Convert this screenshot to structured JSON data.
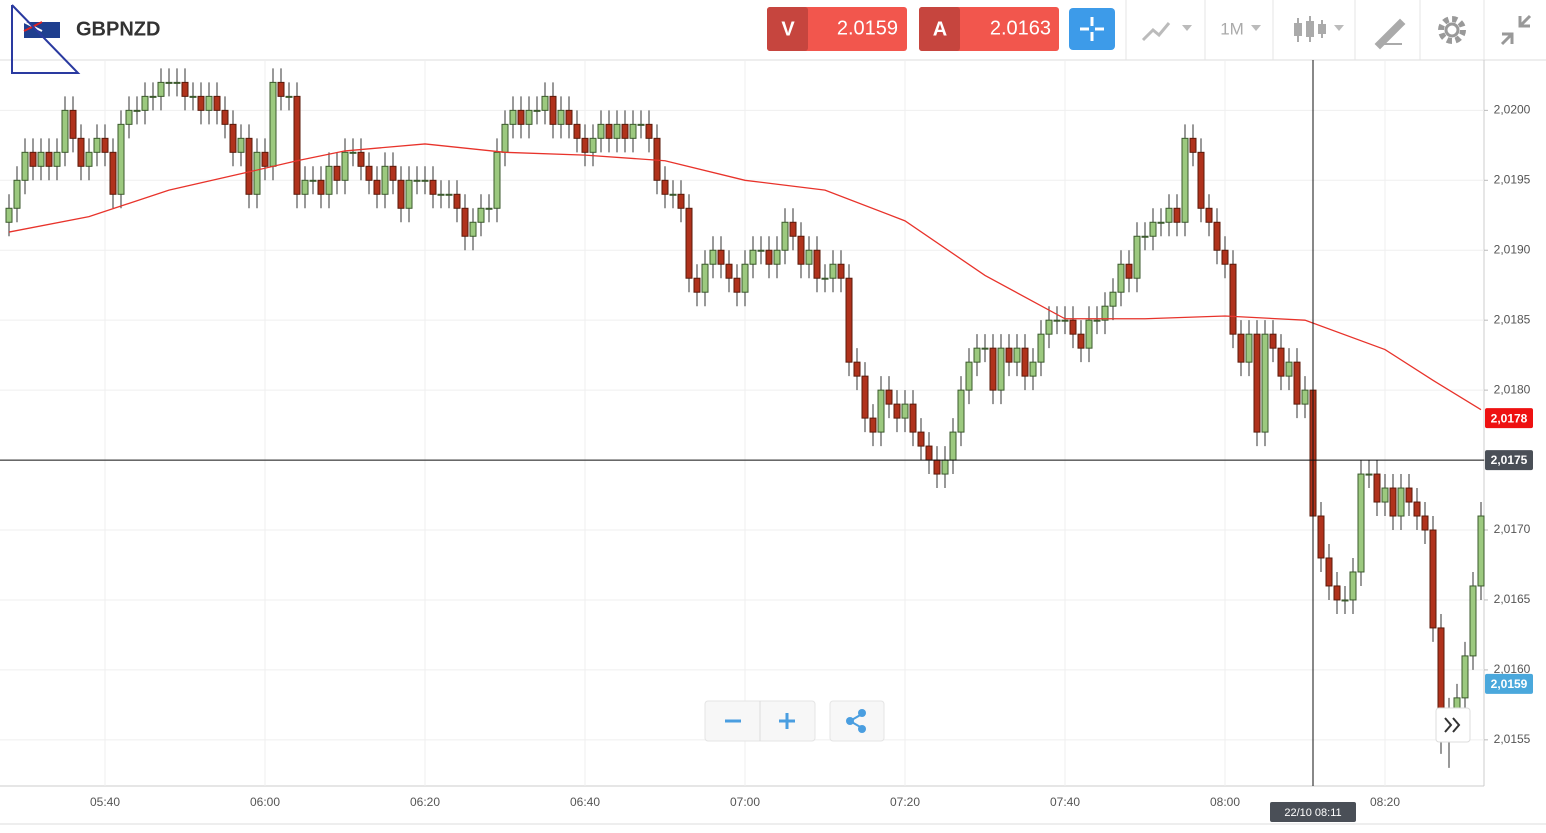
{
  "header": {
    "symbol": "GBPNZD",
    "sell_label": "V",
    "sell_price": "2.0159",
    "buy_label": "A",
    "buy_price": "2.0163",
    "timeframe": "1M"
  },
  "chart_data": {
    "type": "candlestick",
    "categories": [
      "05:28",
      "05:29",
      "05:30",
      "05:31",
      "05:32",
      "05:33",
      "05:34",
      "05:35",
      "05:36",
      "05:37",
      "05:38",
      "05:39",
      "05:40",
      "05:41",
      "05:42",
      "05:43",
      "05:44",
      "05:45",
      "05:46",
      "05:47",
      "05:48",
      "05:49",
      "05:50",
      "05:51",
      "05:52",
      "05:53",
      "05:54",
      "05:55",
      "05:56",
      "05:57",
      "05:58",
      "05:59",
      "06:00",
      "06:01",
      "06:02",
      "06:03",
      "06:04",
      "06:05",
      "06:06",
      "06:07",
      "06:08",
      "06:09",
      "06:10",
      "06:11",
      "06:12",
      "06:13",
      "06:14",
      "06:15",
      "06:16",
      "06:17",
      "06:18",
      "06:19",
      "06:20",
      "06:21",
      "06:22",
      "06:23",
      "06:24",
      "06:25",
      "06:26",
      "06:27",
      "06:28",
      "06:29",
      "06:30",
      "06:31",
      "06:32",
      "06:33",
      "06:34",
      "06:35",
      "06:36",
      "06:37",
      "06:38",
      "06:39",
      "06:40",
      "06:41",
      "06:42",
      "06:43",
      "06:44",
      "06:45",
      "06:46",
      "06:47",
      "06:48",
      "06:49",
      "06:50",
      "06:51",
      "06:52",
      "06:53",
      "06:54",
      "06:55",
      "06:56",
      "06:57",
      "06:58",
      "06:59",
      "07:00",
      "07:01",
      "07:02",
      "07:03",
      "07:04",
      "07:05",
      "07:06",
      "07:07",
      "07:08",
      "07:09",
      "07:10",
      "07:11",
      "07:12",
      "07:13",
      "07:14",
      "07:15",
      "07:16",
      "07:17",
      "07:18",
      "07:19",
      "07:20",
      "07:21",
      "07:22",
      "07:23",
      "07:24",
      "07:25",
      "07:26",
      "07:27",
      "07:28",
      "07:29",
      "07:30",
      "07:31",
      "07:32",
      "07:33",
      "07:34",
      "07:35",
      "07:36",
      "07:37",
      "07:38",
      "07:39",
      "07:40",
      "07:41",
      "07:42",
      "07:43",
      "07:44",
      "07:45",
      "07:46",
      "07:47",
      "07:48",
      "07:49",
      "07:50",
      "07:51",
      "07:52",
      "07:53",
      "07:54",
      "07:55",
      "07:56",
      "07:57",
      "07:58",
      "07:59",
      "08:00",
      "08:01",
      "08:02",
      "08:03",
      "08:04",
      "08:05",
      "08:06",
      "08:07",
      "08:08",
      "08:09",
      "08:10",
      "08:11",
      "08:12",
      "08:13",
      "08:14",
      "08:15",
      "08:16",
      "08:17",
      "08:18",
      "08:19",
      "08:20",
      "08:21",
      "08:22",
      "08:23",
      "08:24",
      "08:25",
      "08:26",
      "08:27",
      "08:28",
      "08:29",
      "08:30",
      "08:31",
      "08:32"
    ],
    "ohlc": [
      [
        2.0192,
        2.0194,
        2.0191,
        2.0193
      ],
      [
        2.0193,
        2.0196,
        2.0192,
        2.0195
      ],
      [
        2.0195,
        2.0198,
        2.0194,
        2.0197
      ],
      [
        2.0197,
        2.0198,
        2.0195,
        2.0196
      ],
      [
        2.0196,
        2.0198,
        2.0195,
        2.0197
      ],
      [
        2.0197,
        2.0198,
        2.0195,
        2.0196
      ],
      [
        2.0196,
        2.0198,
        2.0195,
        2.0197
      ],
      [
        2.0197,
        2.0201,
        2.0196,
        2.02
      ],
      [
        2.02,
        2.0201,
        2.0197,
        2.0198
      ],
      [
        2.0198,
        2.0199,
        2.0195,
        2.0196
      ],
      [
        2.0196,
        2.0198,
        2.0195,
        2.0197
      ],
      [
        2.0197,
        2.0199,
        2.0196,
        2.0198
      ],
      [
        2.0198,
        2.0199,
        2.0196,
        2.0197
      ],
      [
        2.0197,
        2.0198,
        2.0193,
        2.0194
      ],
      [
        2.0194,
        2.02,
        2.0193,
        2.0199
      ],
      [
        2.0199,
        2.0201,
        2.0198,
        2.02
      ],
      [
        2.02,
        2.0201,
        2.0199,
        2.02
      ],
      [
        2.02,
        2.0202,
        2.0199,
        2.0201
      ],
      [
        2.0201,
        2.0202,
        2.02,
        2.0201
      ],
      [
        2.0201,
        2.0203,
        2.02,
        2.0202
      ],
      [
        2.0202,
        2.0203,
        2.0201,
        2.0202
      ],
      [
        2.0202,
        2.0203,
        2.0201,
        2.0202
      ],
      [
        2.0202,
        2.0203,
        2.02,
        2.0201
      ],
      [
        2.0201,
        2.0202,
        2.02,
        2.0201
      ],
      [
        2.0201,
        2.0202,
        2.0199,
        2.02
      ],
      [
        2.02,
        2.0202,
        2.0199,
        2.0201
      ],
      [
        2.0201,
        2.0202,
        2.0199,
        2.02
      ],
      [
        2.02,
        2.0201,
        2.0198,
        2.0199
      ],
      [
        2.0199,
        2.02,
        2.0196,
        2.0197
      ],
      [
        2.0197,
        2.0199,
        2.0196,
        2.0198
      ],
      [
        2.0198,
        2.0199,
        2.0193,
        2.0194
      ],
      [
        2.0194,
        2.0198,
        2.0193,
        2.0197
      ],
      [
        2.0197,
        2.0198,
        2.0195,
        2.0196
      ],
      [
        2.0196,
        2.0203,
        2.0195,
        2.0202
      ],
      [
        2.0202,
        2.0203,
        2.02,
        2.0201
      ],
      [
        2.0201,
        2.0202,
        2.02,
        2.0201
      ],
      [
        2.0201,
        2.0202,
        2.0193,
        2.0194
      ],
      [
        2.0194,
        2.0196,
        2.0193,
        2.0195
      ],
      [
        2.0195,
        2.0196,
        2.0194,
        2.0195
      ],
      [
        2.0195,
        2.0196,
        2.0193,
        2.0194
      ],
      [
        2.0194,
        2.0197,
        2.0193,
        2.0196
      ],
      [
        2.0196,
        2.0197,
        2.0194,
        2.0195
      ],
      [
        2.0195,
        2.0198,
        2.0194,
        2.0197
      ],
      [
        2.0197,
        2.0198,
        2.0196,
        2.0197
      ],
      [
        2.0197,
        2.0198,
        2.0195,
        2.0196
      ],
      [
        2.0196,
        2.0197,
        2.0194,
        2.0195
      ],
      [
        2.0195,
        2.0196,
        2.0193,
        2.0194
      ],
      [
        2.0194,
        2.0197,
        2.0193,
        2.0196
      ],
      [
        2.0196,
        2.0197,
        2.0194,
        2.0195
      ],
      [
        2.0195,
        2.0196,
        2.0192,
        2.0193
      ],
      [
        2.0193,
        2.0196,
        2.0192,
        2.0195
      ],
      [
        2.0195,
        2.0196,
        2.0194,
        2.0195
      ],
      [
        2.0195,
        2.0196,
        2.0194,
        2.0195
      ],
      [
        2.0195,
        2.0196,
        2.0193,
        2.0194
      ],
      [
        2.0194,
        2.0195,
        2.0193,
        2.0194
      ],
      [
        2.0194,
        2.0195,
        2.0193,
        2.0194
      ],
      [
        2.0194,
        2.0195,
        2.0192,
        2.0193
      ],
      [
        2.0193,
        2.0194,
        2.019,
        2.0191
      ],
      [
        2.0191,
        2.0193,
        2.019,
        2.0192
      ],
      [
        2.0192,
        2.0194,
        2.0191,
        2.0193
      ],
      [
        2.0193,
        2.0194,
        2.0192,
        2.0193
      ],
      [
        2.0193,
        2.0198,
        2.0192,
        2.0197
      ],
      [
        2.0197,
        2.02,
        2.0196,
        2.0199
      ],
      [
        2.0199,
        2.0201,
        2.0198,
        2.02
      ],
      [
        2.02,
        2.0201,
        2.0198,
        2.0199
      ],
      [
        2.0199,
        2.0201,
        2.0198,
        2.02
      ],
      [
        2.02,
        2.0201,
        2.0199,
        2.02
      ],
      [
        2.02,
        2.0202,
        2.0199,
        2.0201
      ],
      [
        2.0201,
        2.0202,
        2.0198,
        2.0199
      ],
      [
        2.0199,
        2.0201,
        2.0198,
        2.02
      ],
      [
        2.02,
        2.0201,
        2.0198,
        2.0199
      ],
      [
        2.0199,
        2.02,
        2.0197,
        2.0198
      ],
      [
        2.0198,
        2.0199,
        2.0196,
        2.0197
      ],
      [
        2.0197,
        2.0199,
        2.0196,
        2.0198
      ],
      [
        2.0198,
        2.02,
        2.0197,
        2.0199
      ],
      [
        2.0199,
        2.02,
        2.0197,
        2.0198
      ],
      [
        2.0198,
        2.02,
        2.0197,
        2.0199
      ],
      [
        2.0199,
        2.02,
        2.0197,
        2.0198
      ],
      [
        2.0198,
        2.02,
        2.0197,
        2.0199
      ],
      [
        2.0199,
        2.02,
        2.0198,
        2.0199
      ],
      [
        2.0199,
        2.02,
        2.0197,
        2.0198
      ],
      [
        2.0198,
        2.0199,
        2.0194,
        2.0195
      ],
      [
        2.0195,
        2.0196,
        2.0193,
        2.0194
      ],
      [
        2.0194,
        2.0195,
        2.0193,
        2.0194
      ],
      [
        2.0194,
        2.0195,
        2.0192,
        2.0193
      ],
      [
        2.0193,
        2.0194,
        2.0187,
        2.0188
      ],
      [
        2.0188,
        2.0189,
        2.0186,
        2.0187
      ],
      [
        2.0187,
        2.019,
        2.0186,
        2.0189
      ],
      [
        2.0189,
        2.0191,
        2.0188,
        2.019
      ],
      [
        2.019,
        2.0191,
        2.0188,
        2.0189
      ],
      [
        2.0189,
        2.019,
        2.0187,
        2.0188
      ],
      [
        2.0188,
        2.0189,
        2.0186,
        2.0187
      ],
      [
        2.0187,
        2.019,
        2.0186,
        2.0189
      ],
      [
        2.0189,
        2.0191,
        2.0188,
        2.019
      ],
      [
        2.019,
        2.0191,
        2.0189,
        2.019
      ],
      [
        2.019,
        2.0191,
        2.0188,
        2.0189
      ],
      [
        2.0189,
        2.0191,
        2.0188,
        2.019
      ],
      [
        2.019,
        2.0193,
        2.0189,
        2.0192
      ],
      [
        2.0192,
        2.0193,
        2.019,
        2.0191
      ],
      [
        2.0191,
        2.0192,
        2.0188,
        2.0189
      ],
      [
        2.0189,
        2.0191,
        2.0188,
        2.019
      ],
      [
        2.019,
        2.0191,
        2.0187,
        2.0188
      ],
      [
        2.0188,
        2.0189,
        2.0187,
        2.0188
      ],
      [
        2.0188,
        2.019,
        2.0187,
        2.0189
      ],
      [
        2.0189,
        2.019,
        2.0187,
        2.0188
      ],
      [
        2.0188,
        2.0189,
        2.0181,
        2.0182
      ],
      [
        2.0182,
        2.0183,
        2.018,
        2.0181
      ],
      [
        2.0181,
        2.0182,
        2.0177,
        2.0178
      ],
      [
        2.0178,
        2.0179,
        2.0176,
        2.0177
      ],
      [
        2.0177,
        2.0181,
        2.0176,
        2.018
      ],
      [
        2.018,
        2.0181,
        2.0178,
        2.0179
      ],
      [
        2.0179,
        2.018,
        2.0177,
        2.0178
      ],
      [
        2.0178,
        2.018,
        2.0177,
        2.0179
      ],
      [
        2.0179,
        2.018,
        2.0176,
        2.0177
      ],
      [
        2.0177,
        2.0178,
        2.0175,
        2.0176
      ],
      [
        2.0176,
        2.0177,
        2.0174,
        2.0175
      ],
      [
        2.0175,
        2.0176,
        2.0173,
        2.0174
      ],
      [
        2.0174,
        2.0176,
        2.0173,
        2.0175
      ],
      [
        2.0175,
        2.0178,
        2.0174,
        2.0177
      ],
      [
        2.0177,
        2.0181,
        2.0176,
        2.018
      ],
      [
        2.018,
        2.0183,
        2.0179,
        2.0182
      ],
      [
        2.0182,
        2.0184,
        2.0181,
        2.0183
      ],
      [
        2.0183,
        2.0184,
        2.0182,
        2.0183
      ],
      [
        2.0183,
        2.0184,
        2.0179,
        2.018
      ],
      [
        2.018,
        2.0184,
        2.0179,
        2.0183
      ],
      [
        2.0183,
        2.0184,
        2.0181,
        2.0182
      ],
      [
        2.0182,
        2.0184,
        2.0181,
        2.0183
      ],
      [
        2.0183,
        2.0184,
        2.018,
        2.0181
      ],
      [
        2.0181,
        2.0183,
        2.018,
        2.0182
      ],
      [
        2.0182,
        2.0185,
        2.0181,
        2.0184
      ],
      [
        2.0184,
        2.0186,
        2.0183,
        2.0185
      ],
      [
        2.0185,
        2.0186,
        2.0184,
        2.0185
      ],
      [
        2.0185,
        2.0186,
        2.0184,
        2.0185
      ],
      [
        2.0185,
        2.0186,
        2.0183,
        2.0184
      ],
      [
        2.0184,
        2.0185,
        2.0182,
        2.0183
      ],
      [
        2.0183,
        2.0186,
        2.0182,
        2.0185
      ],
      [
        2.0185,
        2.0186,
        2.0184,
        2.0185
      ],
      [
        2.0185,
        2.0187,
        2.0184,
        2.0186
      ],
      [
        2.0186,
        2.0188,
        2.0185,
        2.0187
      ],
      [
        2.0187,
        2.019,
        2.0186,
        2.0189
      ],
      [
        2.0189,
        2.019,
        2.0187,
        2.0188
      ],
      [
        2.0188,
        2.0192,
        2.0187,
        2.0191
      ],
      [
        2.0191,
        2.0192,
        2.019,
        2.0191
      ],
      [
        2.0191,
        2.0193,
        2.019,
        2.0192
      ],
      [
        2.0192,
        2.0193,
        2.0191,
        2.0192
      ],
      [
        2.0192,
        2.0194,
        2.0191,
        2.0193
      ],
      [
        2.0193,
        2.0194,
        2.0191,
        2.0192
      ],
      [
        2.0192,
        2.0199,
        2.0191,
        2.0198
      ],
      [
        2.0198,
        2.0199,
        2.0196,
        2.0197
      ],
      [
        2.0197,
        2.0198,
        2.0192,
        2.0193
      ],
      [
        2.0193,
        2.0194,
        2.0191,
        2.0192
      ],
      [
        2.0192,
        2.0193,
        2.0189,
        2.019
      ],
      [
        2.019,
        2.0191,
        2.0188,
        2.0189
      ],
      [
        2.0189,
        2.019,
        2.0183,
        2.0184
      ],
      [
        2.0184,
        2.0185,
        2.0181,
        2.0182
      ],
      [
        2.0182,
        2.0185,
        2.0181,
        2.0184
      ],
      [
        2.0184,
        2.0185,
        2.0176,
        2.0177
      ],
      [
        2.0177,
        2.0185,
        2.0176,
        2.0184
      ],
      [
        2.0184,
        2.0185,
        2.0182,
        2.0183
      ],
      [
        2.0183,
        2.0184,
        2.018,
        2.0181
      ],
      [
        2.0181,
        2.0183,
        2.018,
        2.0182
      ],
      [
        2.0182,
        2.0183,
        2.0178,
        2.0179
      ],
      [
        2.0179,
        2.0181,
        2.0178,
        2.018
      ],
      [
        2.018,
        2.0181,
        2.017,
        2.0171
      ],
      [
        2.0171,
        2.0172,
        2.0167,
        2.0168
      ],
      [
        2.0168,
        2.0169,
        2.0165,
        2.0166
      ],
      [
        2.0166,
        2.0167,
        2.0164,
        2.0165
      ],
      [
        2.0165,
        2.0166,
        2.0164,
        2.0165
      ],
      [
        2.0165,
        2.0168,
        2.0164,
        2.0167
      ],
      [
        2.0167,
        2.0175,
        2.0166,
        2.0174
      ],
      [
        2.0174,
        2.0175,
        2.0173,
        2.0174
      ],
      [
        2.0174,
        2.0175,
        2.0171,
        2.0172
      ],
      [
        2.0172,
        2.0174,
        2.0171,
        2.0173
      ],
      [
        2.0173,
        2.0174,
        2.017,
        2.0171
      ],
      [
        2.0171,
        2.0174,
        2.017,
        2.0173
      ],
      [
        2.0173,
        2.0174,
        2.0171,
        2.0172
      ],
      [
        2.0172,
        2.0173,
        2.017,
        2.0171
      ],
      [
        2.0171,
        2.0172,
        2.0169,
        2.017
      ],
      [
        2.017,
        2.0171,
        2.0162,
        2.0163
      ],
      [
        2.0163,
        2.0164,
        2.0154,
        2.0155
      ],
      [
        2.0155,
        2.0158,
        2.0153,
        2.0157
      ],
      [
        2.0157,
        2.0159,
        2.0156,
        2.0158
      ],
      [
        2.0158,
        2.0162,
        2.0157,
        2.0161
      ],
      [
        2.0161,
        2.0167,
        2.016,
        2.0166
      ],
      [
        2.0166,
        2.0172,
        2.0165,
        2.0171
      ]
    ],
    "up_color": "#9cc97f",
    "down_color": "#b0321c",
    "moving_average": {
      "color": "#e8332b",
      "x": [
        "05:28",
        "05:38",
        "05:48",
        "05:58",
        "06:04",
        "06:10",
        "06:20",
        "06:30",
        "06:40",
        "06:50",
        "07:00",
        "07:10",
        "07:20",
        "07:30",
        "07:40",
        "07:50",
        "08:00",
        "08:10",
        "08:20",
        "08:26",
        "08:32"
      ],
      "values": [
        2.01913,
        2.01924,
        2.01943,
        2.01956,
        2.01964,
        2.01971,
        2.01976,
        2.0197,
        2.01968,
        2.01964,
        2.0195,
        2.01943,
        2.01921,
        2.01882,
        2.01851,
        2.01851,
        2.01853,
        2.0185,
        2.01829,
        2.01807,
        2.01786
      ]
    },
    "ylim": [
      2.01517,
      2.02036
    ],
    "yticks": [
      {
        "value": 2.0155,
        "label": "2,0155"
      },
      {
        "value": 2.016,
        "label": "2,0160"
      },
      {
        "value": 2.0165,
        "label": "2,0165"
      },
      {
        "value": 2.017,
        "label": "2,0170"
      },
      {
        "value": 2.0175,
        "label": "2,0175"
      },
      {
        "value": 2.018,
        "label": "2,0180"
      },
      {
        "value": 2.0185,
        "label": "2,0185"
      },
      {
        "value": 2.019,
        "label": "2,0190"
      },
      {
        "value": 2.0195,
        "label": "2,0195"
      },
      {
        "value": 2.02,
        "label": "2,0200"
      }
    ],
    "grid": true,
    "price_tags": [
      {
        "value": 2.0178,
        "label": "2,0178",
        "color": "#ee1111"
      },
      {
        "value": 2.0159,
        "label": "2,0159",
        "color": "#4aa8dc"
      }
    ],
    "crosshair": {
      "value": 2.0175,
      "label": "2,0175",
      "time": "08:11",
      "time_label": "22/10 08:11",
      "color": "#4a4f57"
    }
  }
}
